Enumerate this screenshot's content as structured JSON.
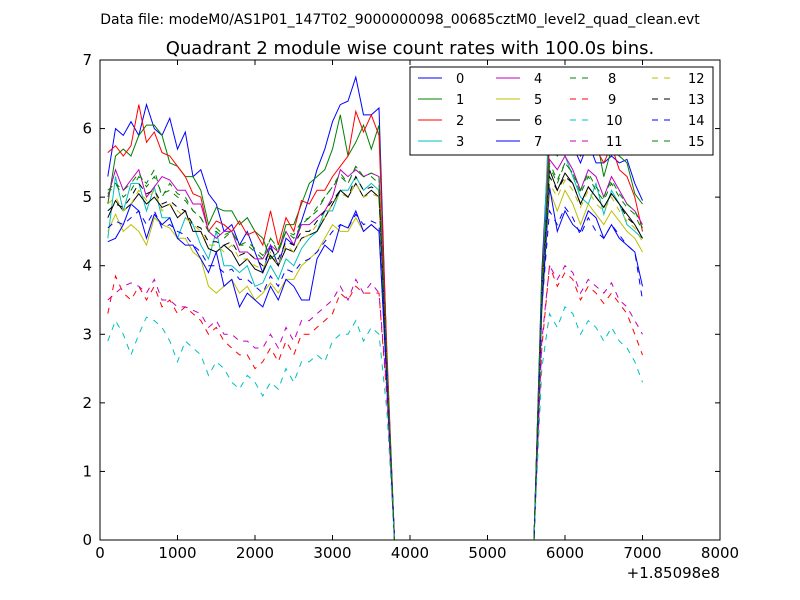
{
  "suptitle": "Data file: modeM0/AS1P01_147T02_9000000098_00685cztM0_level2_quad_clean.evt",
  "chart_data": {
    "type": "line",
    "title": "Quadrant 2 module wise count rates with 100.0s bins.",
    "xlabel": "",
    "ylabel": "",
    "x_offset_label": "+1.85098e8",
    "xlim": [
      0,
      8000
    ],
    "ylim": [
      0,
      7
    ],
    "xticks": [
      0,
      1000,
      2000,
      3000,
      4000,
      5000,
      6000,
      7000,
      8000
    ],
    "yticks": [
      0,
      1,
      2,
      3,
      4,
      5,
      6,
      7
    ],
    "legend_position": "top-right",
    "legend_columns": 4,
    "x": [
      100,
      200,
      300,
      400,
      500,
      600,
      700,
      800,
      900,
      1000,
      1100,
      1200,
      1300,
      1400,
      1500,
      1600,
      1700,
      1800,
      1900,
      2000,
      2100,
      2200,
      2300,
      2400,
      2500,
      2600,
      2700,
      2800,
      2900,
      3000,
      3100,
      3200,
      3300,
      3400,
      3500,
      3600,
      3700,
      3800,
      3900,
      4000,
      4100,
      4200,
      4300,
      4400,
      4500,
      4600,
      4700,
      4800,
      4900,
      5000,
      5100,
      5200,
      5300,
      5400,
      5500,
      5600,
      5700,
      5800,
      5900,
      6000,
      6100,
      6200,
      6300,
      6400,
      6500,
      6600,
      6700,
      6800,
      6900,
      7000
    ],
    "series": [
      {
        "name": "0",
        "color": "#0000ff",
        "dash": false,
        "values": [
          5.3,
          6.0,
          5.9,
          6.1,
          5.9,
          6.35,
          6.0,
          5.9,
          6.15,
          5.7,
          5.95,
          5.3,
          5.4,
          5.05,
          4.9,
          4.5,
          4.6,
          4.3,
          4.5,
          4.2,
          3.9,
          4.3,
          4.0,
          4.4,
          4.3,
          4.65,
          5.0,
          5.4,
          5.7,
          6.1,
          6.35,
          6.4,
          6.75,
          6.2,
          6.2,
          6.3,
          2.7,
          0,
          0,
          0,
          0,
          0,
          0,
          0,
          0,
          0,
          0,
          0,
          0,
          0,
          0,
          0,
          0,
          0,
          0,
          0,
          3.9,
          6.05,
          5.75,
          5.95,
          5.75,
          5.5,
          5.8,
          5.5,
          5.5,
          5.6,
          5.5,
          5.55,
          5.2,
          4.95
        ]
      },
      {
        "name": "1",
        "color": "#008000",
        "dash": false,
        "values": [
          4.9,
          5.6,
          5.7,
          5.6,
          5.9,
          6.05,
          6.05,
          5.9,
          5.5,
          5.45,
          5.3,
          5.3,
          5.1,
          4.6,
          4.85,
          4.8,
          4.8,
          4.6,
          4.7,
          4.5,
          4.4,
          4.1,
          4.2,
          4.6,
          4.6,
          4.9,
          5.2,
          5.3,
          5.4,
          5.7,
          6.2,
          5.6,
          5.8,
          6.05,
          5.7,
          6.05,
          2.6,
          0,
          0,
          0,
          0,
          0,
          0,
          0,
          0,
          0,
          0,
          0,
          0,
          0,
          0,
          0,
          0,
          0,
          0,
          0,
          3.8,
          5.75,
          5.6,
          5.85,
          5.95,
          5.6,
          5.7,
          5.9,
          5.3,
          5.7,
          5.6,
          5.5,
          5.05,
          4.9
        ]
      },
      {
        "name": "2",
        "color": "#ff0000",
        "dash": false,
        "values": [
          5.65,
          5.75,
          5.6,
          5.75,
          6.35,
          5.8,
          5.95,
          5.65,
          5.6,
          5.45,
          5.3,
          5.05,
          5.0,
          4.5,
          4.65,
          4.6,
          4.5,
          4.65,
          4.45,
          4.5,
          4.3,
          4.8,
          4.3,
          4.7,
          4.5,
          4.95,
          4.9,
          5.1,
          5.1,
          5.3,
          5.45,
          5.6,
          6.25,
          5.95,
          6.2,
          5.9,
          2.8,
          0,
          0,
          0,
          0,
          0,
          0,
          0,
          0,
          0,
          0,
          0,
          0,
          0,
          0,
          0,
          0,
          0,
          0,
          0,
          3.7,
          6.0,
          5.85,
          5.9,
          5.9,
          5.6,
          5.9,
          5.7,
          5.5,
          5.75,
          5.4,
          5.3,
          5.0,
          4.5
        ]
      },
      {
        "name": "3",
        "color": "#00bfbf",
        "dash": false,
        "values": [
          4.4,
          5.3,
          4.8,
          5.2,
          5.2,
          4.8,
          5.15,
          4.7,
          4.7,
          4.4,
          4.7,
          4.6,
          4.3,
          4.1,
          4.5,
          4.0,
          4.0,
          3.9,
          4.0,
          3.7,
          3.75,
          4.0,
          3.8,
          4.1,
          4.0,
          4.25,
          4.4,
          4.5,
          4.8,
          4.8,
          5.1,
          5.1,
          5.3,
          5.1,
          5.2,
          5.1,
          2.4,
          0,
          0,
          0,
          0,
          0,
          0,
          0,
          0,
          0,
          0,
          0,
          0,
          0,
          0,
          0,
          0,
          0,
          0,
          0,
          3.5,
          6.4,
          5.9,
          5.6,
          5.3,
          5.0,
          4.9,
          5.2,
          4.75,
          5.1,
          4.9,
          4.6,
          4.5,
          4.4
        ]
      },
      {
        "name": "4",
        "color": "#bf00bf",
        "dash": false,
        "values": [
          5.0,
          5.4,
          5.1,
          5.25,
          5.4,
          5.0,
          5.15,
          5.3,
          5.25,
          5.1,
          5.1,
          4.9,
          4.9,
          4.5,
          4.4,
          4.5,
          4.5,
          4.2,
          4.2,
          4.1,
          4.1,
          4.3,
          4.2,
          4.5,
          4.3,
          4.6,
          4.6,
          4.7,
          4.8,
          5.0,
          5.4,
          5.3,
          5.4,
          5.3,
          5.35,
          5.3,
          2.6,
          0,
          0,
          0,
          0,
          0,
          0,
          0,
          0,
          0,
          0,
          0,
          0,
          0,
          0,
          0,
          0,
          0,
          0,
          0,
          3.7,
          5.55,
          5.4,
          5.6,
          5.4,
          5.1,
          5.4,
          5.3,
          5.0,
          5.3,
          5.1,
          4.9,
          4.8,
          4.6
        ]
      },
      {
        "name": "5",
        "color": "#bfbf00",
        "dash": false,
        "values": [
          4.5,
          4.75,
          4.5,
          4.6,
          4.5,
          4.3,
          4.7,
          4.6,
          4.55,
          4.4,
          4.4,
          4.2,
          4.1,
          3.7,
          3.6,
          3.7,
          3.8,
          3.6,
          3.7,
          3.5,
          3.6,
          3.75,
          3.6,
          3.8,
          3.8,
          4.0,
          4.1,
          4.2,
          4.4,
          4.6,
          4.5,
          4.5,
          4.7,
          4.5,
          4.6,
          4.5,
          2.3,
          0,
          0,
          0,
          0,
          0,
          0,
          0,
          0,
          0,
          0,
          0,
          0,
          0,
          0,
          0,
          0,
          0,
          0,
          0,
          3.3,
          5.1,
          4.8,
          5.1,
          4.9,
          4.6,
          4.9,
          4.75,
          4.6,
          4.8,
          4.65,
          4.5,
          4.4,
          4.2
        ]
      },
      {
        "name": "6",
        "color": "#000000",
        "dash": false,
        "values": [
          4.7,
          4.95,
          4.8,
          4.9,
          5.05,
          4.9,
          5.0,
          4.85,
          4.9,
          4.7,
          4.8,
          4.5,
          4.5,
          4.25,
          4.2,
          4.3,
          4.2,
          4.0,
          4.1,
          3.95,
          3.9,
          4.15,
          4.0,
          4.25,
          4.2,
          4.4,
          4.45,
          4.5,
          4.7,
          4.9,
          5.1,
          5.0,
          5.2,
          5.0,
          5.1,
          5.0,
          2.5,
          0,
          0,
          0,
          0,
          0,
          0,
          0,
          0,
          0,
          0,
          0,
          0,
          0,
          0,
          0,
          0,
          0,
          0,
          0,
          3.6,
          5.4,
          5.1,
          5.35,
          5.2,
          4.9,
          5.15,
          5.0,
          4.85,
          5.05,
          4.9,
          4.75,
          4.6,
          4.4
        ]
      },
      {
        "name": "7",
        "color": "#0000ff",
        "dash": false,
        "values": [
          4.35,
          4.4,
          4.6,
          4.9,
          4.8,
          4.4,
          4.75,
          4.6,
          4.7,
          4.4,
          4.3,
          4.3,
          4.1,
          3.9,
          4.2,
          3.7,
          3.8,
          3.4,
          3.6,
          3.5,
          3.4,
          3.7,
          3.5,
          3.8,
          3.7,
          3.5,
          3.5,
          4.1,
          4.3,
          4.2,
          4.6,
          4.55,
          4.8,
          4.5,
          4.6,
          4.5,
          2.3,
          0,
          0,
          0,
          0,
          0,
          0,
          0,
          0,
          0,
          0,
          0,
          0,
          0,
          0,
          0,
          0,
          0,
          0,
          0,
          3.4,
          5.15,
          4.5,
          4.8,
          4.6,
          4.5,
          4.8,
          4.7,
          4.4,
          4.6,
          4.4,
          4.3,
          4.2,
          3.7
        ]
      },
      {
        "name": "8",
        "color": "#008000",
        "dash": true,
        "values": [
          5.1,
          5.2,
          5.0,
          5.1,
          5.3,
          5.2,
          5.4,
          5.0,
          5.2,
          5.05,
          5.0,
          4.8,
          4.7,
          4.5,
          4.5,
          4.4,
          4.5,
          4.3,
          4.3,
          4.2,
          4.1,
          4.4,
          4.2,
          4.5,
          4.4,
          4.6,
          4.7,
          4.8,
          5.0,
          5.15,
          5.3,
          5.2,
          5.45,
          5.3,
          5.3,
          5.2,
          2.6,
          0,
          0,
          0,
          0,
          0,
          0,
          0,
          0,
          0,
          0,
          0,
          0,
          0,
          0,
          0,
          0,
          0,
          0,
          0,
          3.7,
          5.45,
          5.2,
          5.5,
          5.35,
          5.05,
          5.3,
          5.1,
          4.95,
          5.2,
          5.0,
          4.85,
          4.75,
          4.5
        ]
      },
      {
        "name": "9",
        "color": "#ff0000",
        "dash": true,
        "values": [
          3.3,
          3.85,
          3.6,
          3.5,
          3.7,
          3.5,
          3.7,
          3.4,
          3.5,
          3.3,
          3.4,
          3.3,
          3.2,
          3.0,
          3.1,
          2.9,
          2.8,
          2.7,
          2.7,
          2.5,
          2.6,
          2.8,
          2.6,
          2.9,
          2.7,
          3.0,
          3.0,
          3.1,
          3.2,
          3.3,
          3.6,
          3.5,
          3.7,
          3.6,
          3.6,
          3.6,
          2.1,
          0,
          0,
          0,
          0,
          0,
          0,
          0,
          0,
          0,
          0,
          0,
          0,
          0,
          0,
          0,
          0,
          0,
          0,
          0,
          2.8,
          4.0,
          3.7,
          3.9,
          3.8,
          3.5,
          3.7,
          3.6,
          3.45,
          3.6,
          3.45,
          3.3,
          3.0,
          2.7
        ]
      },
      {
        "name": "10",
        "color": "#00bfbf",
        "dash": true,
        "values": [
          2.9,
          3.2,
          3.0,
          2.7,
          3.0,
          3.25,
          3.2,
          3.1,
          2.9,
          2.6,
          2.9,
          2.8,
          2.7,
          2.4,
          2.6,
          2.5,
          2.3,
          2.2,
          2.4,
          2.3,
          2.1,
          2.3,
          2.2,
          2.5,
          2.3,
          2.6,
          2.6,
          2.7,
          2.6,
          2.9,
          3.0,
          3.0,
          3.2,
          2.9,
          3.1,
          3.0,
          1.9,
          0,
          0,
          0,
          0,
          0,
          0,
          0,
          0,
          0,
          0,
          0,
          0,
          0,
          0,
          0,
          0,
          0,
          0,
          0,
          2.5,
          3.3,
          3.1,
          3.4,
          3.3,
          3.0,
          3.2,
          3.1,
          2.9,
          3.1,
          2.9,
          2.8,
          2.6,
          2.3
        ]
      },
      {
        "name": "11",
        "color": "#bf00bf",
        "dash": true,
        "values": [
          3.5,
          3.6,
          3.7,
          3.75,
          3.7,
          3.6,
          3.8,
          3.5,
          3.5,
          3.4,
          3.4,
          3.35,
          3.3,
          3.1,
          3.2,
          3.0,
          3.0,
          2.9,
          2.9,
          2.8,
          2.8,
          3.0,
          2.8,
          3.1,
          2.9,
          3.2,
          3.2,
          3.3,
          3.4,
          3.5,
          3.7,
          3.5,
          3.8,
          3.6,
          3.75,
          3.6,
          2.2,
          0,
          0,
          0,
          0,
          0,
          0,
          0,
          0,
          0,
          0,
          0,
          0,
          0,
          0,
          0,
          0,
          0,
          0,
          0,
          2.9,
          4.0,
          3.8,
          4.0,
          3.9,
          3.6,
          3.8,
          3.7,
          3.6,
          3.75,
          3.5,
          3.4,
          3.2,
          3.0
        ]
      },
      {
        "name": "12",
        "color": "#bfbf00",
        "dash": true,
        "values": [
          4.9,
          5.0,
          4.8,
          4.9,
          5.1,
          4.95,
          5.1,
          4.8,
          4.9,
          4.8,
          4.7,
          4.6,
          4.5,
          4.3,
          4.3,
          4.2,
          4.3,
          4.1,
          4.1,
          4.0,
          3.95,
          4.2,
          4.0,
          4.3,
          4.2,
          4.4,
          4.45,
          4.6,
          4.7,
          4.9,
          5.05,
          5.0,
          5.2,
          5.0,
          5.05,
          5.0,
          2.5,
          0,
          0,
          0,
          0,
          0,
          0,
          0,
          0,
          0,
          0,
          0,
          0,
          0,
          0,
          0,
          0,
          0,
          0,
          0,
          3.6,
          5.2,
          5.0,
          5.25,
          5.1,
          4.85,
          5.1,
          4.9,
          4.8,
          5.0,
          4.8,
          4.65,
          4.55,
          4.35
        ]
      },
      {
        "name": "13",
        "color": "#000000",
        "dash": true,
        "values": [
          4.8,
          4.9,
          4.85,
          5.0,
          5.2,
          5.05,
          5.1,
          4.9,
          4.95,
          4.85,
          4.8,
          4.6,
          4.55,
          4.35,
          4.35,
          4.3,
          4.35,
          4.15,
          4.2,
          4.1,
          4.0,
          4.25,
          4.1,
          4.35,
          4.3,
          4.5,
          4.5,
          4.65,
          4.8,
          4.95,
          5.1,
          5.0,
          5.3,
          5.1,
          5.15,
          5.1,
          2.5,
          0,
          0,
          0,
          0,
          0,
          0,
          0,
          0,
          0,
          0,
          0,
          0,
          0,
          0,
          0,
          0,
          0,
          0,
          0,
          3.65,
          5.3,
          5.1,
          5.3,
          5.2,
          4.9,
          5.15,
          5.0,
          4.85,
          5.05,
          4.9,
          4.7,
          4.6,
          4.4
        ]
      },
      {
        "name": "14",
        "color": "#0000ff",
        "dash": true,
        "values": [
          4.55,
          4.65,
          4.6,
          4.7,
          4.8,
          4.6,
          4.8,
          4.55,
          4.6,
          4.5,
          4.45,
          4.3,
          4.2,
          4.0,
          4.0,
          3.9,
          3.95,
          3.8,
          3.8,
          3.7,
          3.6,
          3.85,
          3.7,
          3.95,
          3.9,
          4.05,
          4.1,
          4.2,
          4.35,
          4.5,
          4.6,
          4.55,
          4.75,
          4.6,
          4.65,
          4.6,
          2.35,
          0,
          0,
          0,
          0,
          0,
          0,
          0,
          0,
          0,
          0,
          0,
          0,
          0,
          0,
          0,
          0,
          0,
          0,
          0,
          3.4,
          4.8,
          4.6,
          4.85,
          4.7,
          4.45,
          4.7,
          4.5,
          4.4,
          4.6,
          4.45,
          4.3,
          4.2,
          3.5
        ]
      },
      {
        "name": "15",
        "color": "#008000",
        "dash": true,
        "values": [
          5.05,
          5.2,
          5.1,
          5.2,
          5.35,
          5.15,
          5.3,
          5.05,
          5.1,
          5.0,
          4.95,
          4.8,
          4.7,
          4.5,
          4.55,
          4.45,
          4.5,
          4.3,
          4.35,
          4.25,
          4.15,
          4.4,
          4.25,
          4.5,
          4.45,
          4.65,
          4.7,
          4.85,
          5.0,
          5.15,
          5.35,
          5.2,
          5.45,
          5.3,
          5.35,
          5.3,
          2.6,
          0,
          0,
          0,
          0,
          0,
          0,
          0,
          0,
          0,
          0,
          0,
          0,
          0,
          0,
          0,
          0,
          0,
          0,
          0,
          3.7,
          5.5,
          5.25,
          5.5,
          5.35,
          5.1,
          5.35,
          5.15,
          5.0,
          5.25,
          5.05,
          4.9,
          4.8,
          4.55
        ]
      }
    ]
  }
}
